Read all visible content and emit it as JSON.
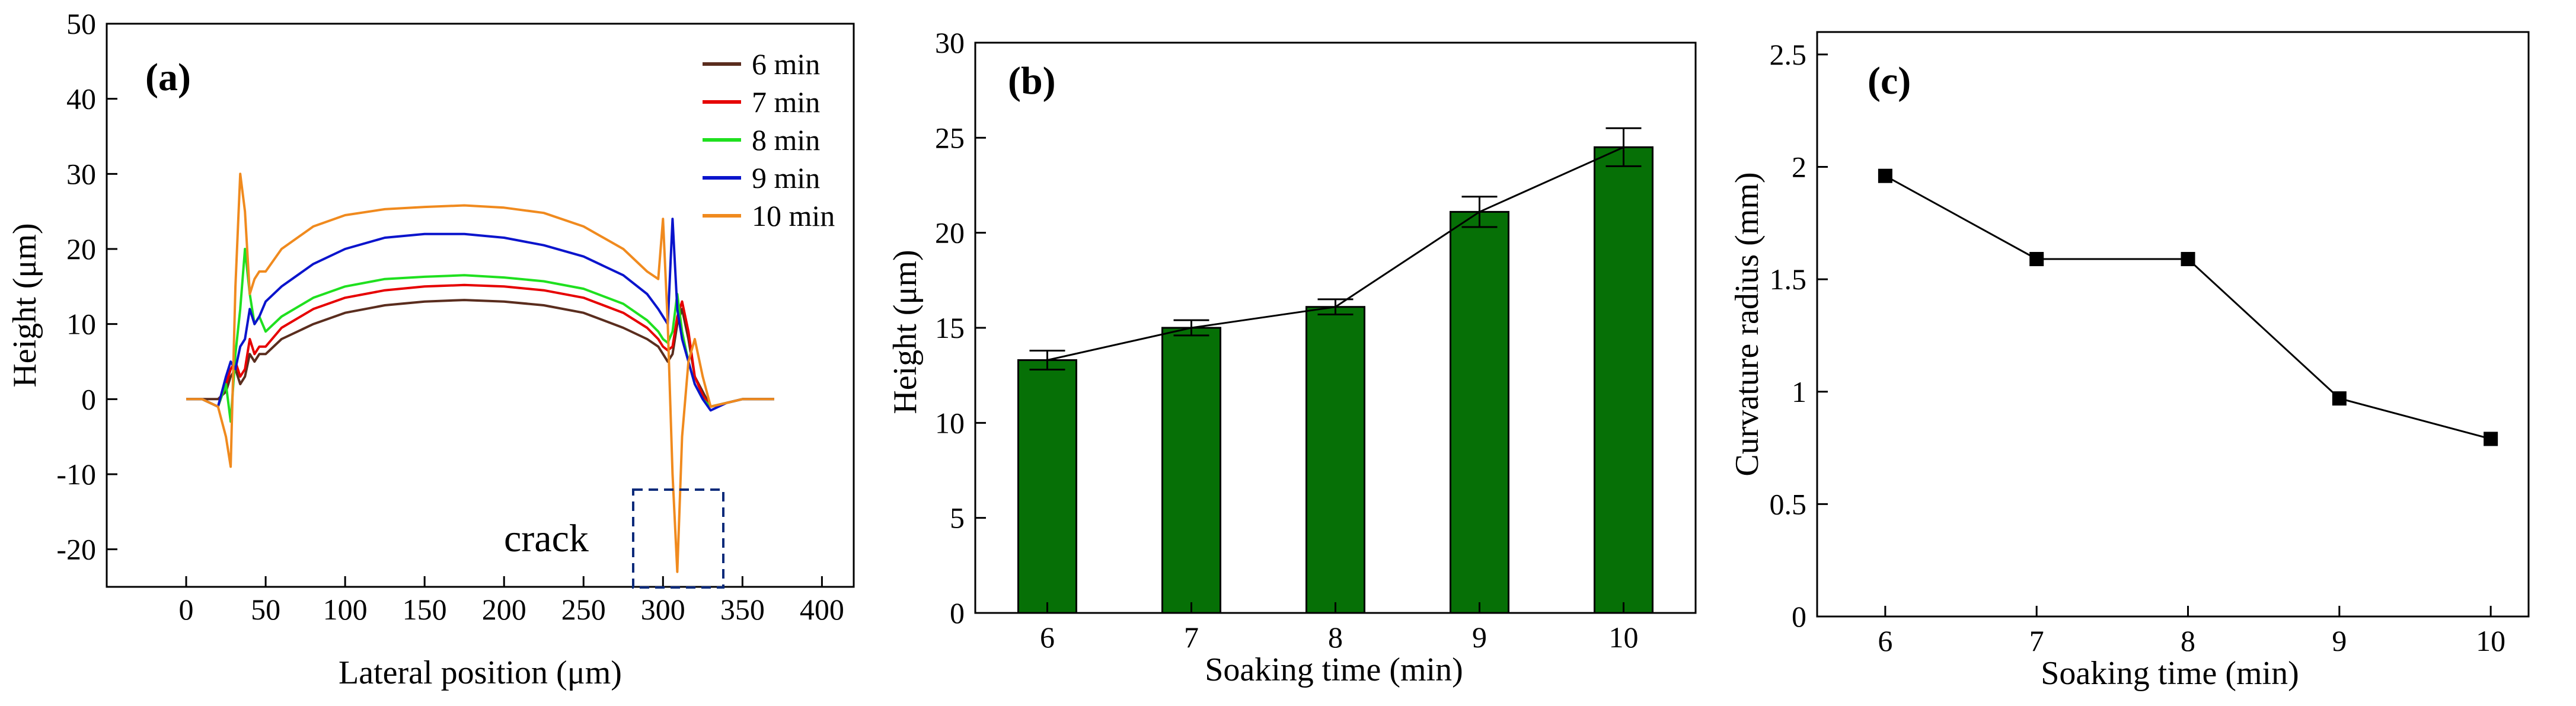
{
  "chart_data": [
    {
      "type": "line",
      "panel": "(a)",
      "xlabel": "Lateral position (μm)",
      "ylabel": "Height (μm)",
      "xlim": [
        -50,
        420
      ],
      "ylim": [
        -25,
        50
      ],
      "xticks": [
        0,
        50,
        100,
        150,
        200,
        250,
        300,
        350,
        400
      ],
      "yticks": [
        -20,
        -10,
        0,
        10,
        20,
        30,
        40,
        50
      ],
      "x": [
        0,
        10,
        20,
        25,
        28,
        31,
        34,
        37,
        40,
        43,
        46,
        50,
        60,
        80,
        100,
        125,
        150,
        175,
        200,
        225,
        250,
        275,
        290,
        297,
        300,
        303,
        306,
        309,
        312,
        316,
        320,
        325,
        330,
        340,
        350,
        370
      ],
      "series": [
        {
          "name": "6 min",
          "color": "#5a2d1e",
          "values": [
            0,
            0,
            0,
            1,
            3,
            4,
            2,
            3,
            6,
            5,
            6,
            6,
            8,
            10,
            11.5,
            12.5,
            13,
            13.2,
            13,
            12.5,
            11.5,
            9.5,
            8,
            7,
            6,
            5,
            6,
            10,
            12,
            8,
            3,
            1,
            -1,
            -0.5,
            0,
            0
          ]
        },
        {
          "name": "7 min",
          "color": "#e60000",
          "values": [
            0,
            0,
            -1,
            2,
            4,
            5,
            3,
            4,
            8,
            6,
            7,
            7,
            9.5,
            12,
            13.5,
            14.5,
            15,
            15.2,
            15,
            14.5,
            13.5,
            11.5,
            9.5,
            8,
            7,
            6.5,
            7,
            11,
            13,
            9,
            3,
            0.5,
            -1,
            -0.5,
            0,
            0
          ]
        },
        {
          "name": "8 min",
          "color": "#1fe01f",
          "values": [
            0,
            0,
            -1,
            2,
            -3,
            6,
            12,
            20,
            14,
            10,
            11,
            9,
            11,
            13.5,
            15,
            16,
            16.3,
            16.5,
            16.2,
            15.7,
            14.7,
            12.7,
            10.5,
            9,
            8,
            7.5,
            9,
            14,
            9,
            5,
            2,
            0,
            -1,
            -0.5,
            0,
            0
          ]
        },
        {
          "name": "9 min",
          "color": "#0a14cc",
          "values": [
            0,
            0,
            -1,
            3,
            5,
            4,
            7,
            8,
            12,
            10,
            11,
            13,
            15,
            18,
            20,
            21.5,
            22,
            22,
            21.5,
            20.5,
            19,
            16.5,
            14,
            12,
            11,
            10,
            24,
            12,
            8,
            5,
            2,
            0,
            -1.5,
            -0.5,
            0,
            0
          ]
        },
        {
          "name": "10 min",
          "color": "#f08a1e",
          "values": [
            0,
            0,
            -1,
            -5,
            -9,
            15,
            30,
            25,
            14,
            16,
            17,
            17,
            20,
            23,
            24.5,
            25.3,
            25.6,
            25.8,
            25.5,
            24.8,
            23,
            20,
            17,
            16,
            24,
            10,
            -10,
            -23,
            -5,
            5,
            8,
            3,
            -1,
            -0.5,
            0,
            0
          ]
        }
      ],
      "annotation": "crack"
    },
    {
      "type": "bar",
      "panel": "(b)",
      "xlabel": "Soaking time (min)",
      "ylabel": "Height (μm)",
      "categories": [
        "6",
        "7",
        "8",
        "9",
        "10"
      ],
      "values": [
        13.3,
        15.0,
        16.1,
        21.1,
        24.5
      ],
      "errors": [
        0.5,
        0.4,
        0.4,
        0.8,
        1.0
      ],
      "ylim": [
        0,
        30
      ],
      "yticks": [
        0,
        5,
        10,
        15,
        20,
        25,
        30
      ],
      "bar_color": "#067006"
    },
    {
      "type": "line",
      "panel": "(c)",
      "xlabel": "Soaking time (min)",
      "ylabel": "Curvature radius (mm)",
      "x": [
        6,
        7,
        8,
        9,
        10
      ],
      "values": [
        1.96,
        1.59,
        1.59,
        0.97,
        0.79
      ],
      "xlim": [
        5.55,
        10.25
      ],
      "ylim": [
        0,
        2.6
      ],
      "xticks": [
        6,
        7,
        8,
        9,
        10
      ],
      "yticks": [
        0,
        0.5,
        1,
        1.5,
        2,
        2.5
      ],
      "yticklabels": [
        "0",
        "0.5",
        "1",
        "1.5",
        "2",
        "2.5"
      ]
    }
  ]
}
